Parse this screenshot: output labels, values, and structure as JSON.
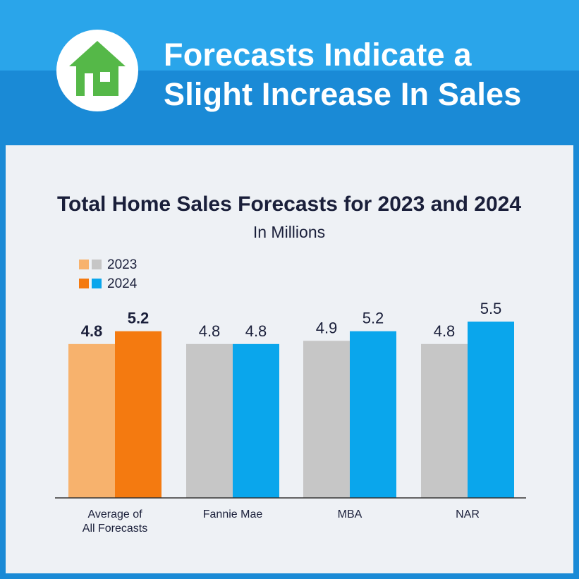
{
  "header": {
    "headline_line1": "Forecasts Indicate a",
    "headline_line2": "Slight Increase In Sales",
    "logo_icon": "house-icon"
  },
  "colors": {
    "banner_top": "#2aa5ea",
    "banner_bottom": "#1a8ad6",
    "panel_bg": "#eef1f5",
    "average_2023": "#f7b26d",
    "average_2024": "#f47a10",
    "other_2023": "#c6c6c6",
    "other_2024": "#0aa6ec",
    "house_green": "#55b848",
    "title_text": "#1a1f3a"
  },
  "chart_data": {
    "type": "bar",
    "title": "Total Home Sales Forecasts for 2023 and 2024",
    "subtitle": "In Millions",
    "categories": [
      "Average of All Forecasts",
      "Fannie Mae",
      "MBA",
      "NAR"
    ],
    "category_lines": [
      [
        "Average of",
        "All Forecasts"
      ],
      [
        "Fannie Mae"
      ],
      [
        "MBA"
      ],
      [
        "NAR"
      ]
    ],
    "series": [
      {
        "name": "2023",
        "values": [
          4.8,
          4.8,
          4.9,
          4.8
        ],
        "labels": [
          "4.8",
          "4.8",
          "4.9",
          "4.8"
        ]
      },
      {
        "name": "2024",
        "values": [
          5.2,
          4.8,
          5.2,
          5.5
        ],
        "labels": [
          "5.2",
          "4.8",
          "5.2",
          "5.5"
        ]
      }
    ],
    "legend": [
      {
        "label": "2023"
      },
      {
        "label": "2024"
      }
    ],
    "legend_position": "top-left",
    "ylim": [
      0,
      5.5
    ],
    "xlabel": "",
    "ylabel": "",
    "grid": false
  }
}
